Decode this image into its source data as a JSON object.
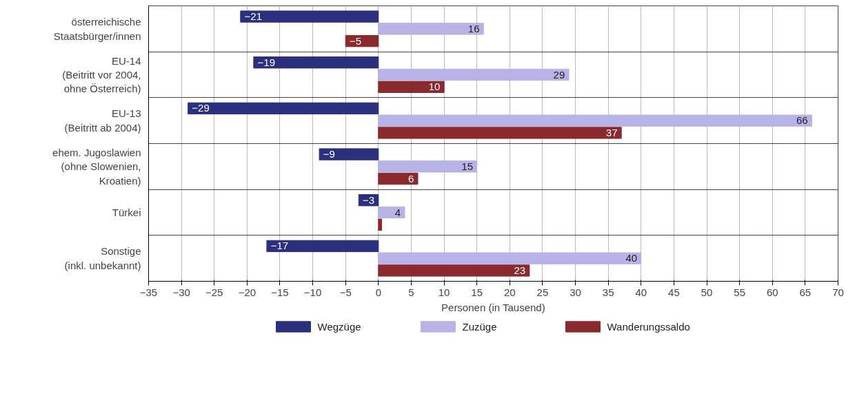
{
  "chart_data": {
    "type": "bar",
    "orientation": "horizontal",
    "xlabel": "Personen (in Tausend)",
    "categories": [
      "österreichische\nStaatsbürger/innen",
      "EU-14\n(Beitritt vor 2004,\nohne Österreich)",
      "EU-13\n(Beitritt ab 2004)",
      "ehem. Jugoslawien\n(ohne Slowenien,\nKroatien)",
      "Türkei",
      "Sonstige\n(inkl. unbekannt)"
    ],
    "series": [
      {
        "name": "Wegzüge",
        "color": "#2b2f7e",
        "values": [
          -21,
          -19,
          -29,
          -9,
          -3,
          -17
        ],
        "value_labels": [
          "−21",
          "−19",
          "−29",
          "−9",
          "−3",
          "−17"
        ]
      },
      {
        "name": "Zuzüge",
        "color": "#b8b3e6",
        "values": [
          16,
          29,
          66,
          15,
          4,
          40
        ],
        "value_labels": [
          "16",
          "29",
          "66",
          "15",
          "4",
          "40"
        ]
      },
      {
        "name": "Wanderungssaldo",
        "color": "#8b2a2e",
        "values": [
          -5,
          10,
          37,
          6,
          0.5,
          23
        ],
        "value_labels": [
          "−5",
          "10",
          "37",
          "6",
          null,
          "23"
        ]
      }
    ],
    "xlim": [
      -35,
      70
    ],
    "xticks": [
      {
        "value": -35,
        "label": "−35"
      },
      {
        "value": -30,
        "label": "−30"
      },
      {
        "value": -25,
        "label": "−25"
      },
      {
        "value": -20,
        "label": "−20"
      },
      {
        "value": -15,
        "label": "−15"
      },
      {
        "value": -10,
        "label": "−10"
      },
      {
        "value": -5,
        "label": "−5"
      },
      0,
      5,
      10,
      15,
      20,
      25,
      30,
      35,
      40,
      45,
      50,
      55,
      60,
      65,
      70
    ],
    "grid": true,
    "legend": "bottom"
  }
}
